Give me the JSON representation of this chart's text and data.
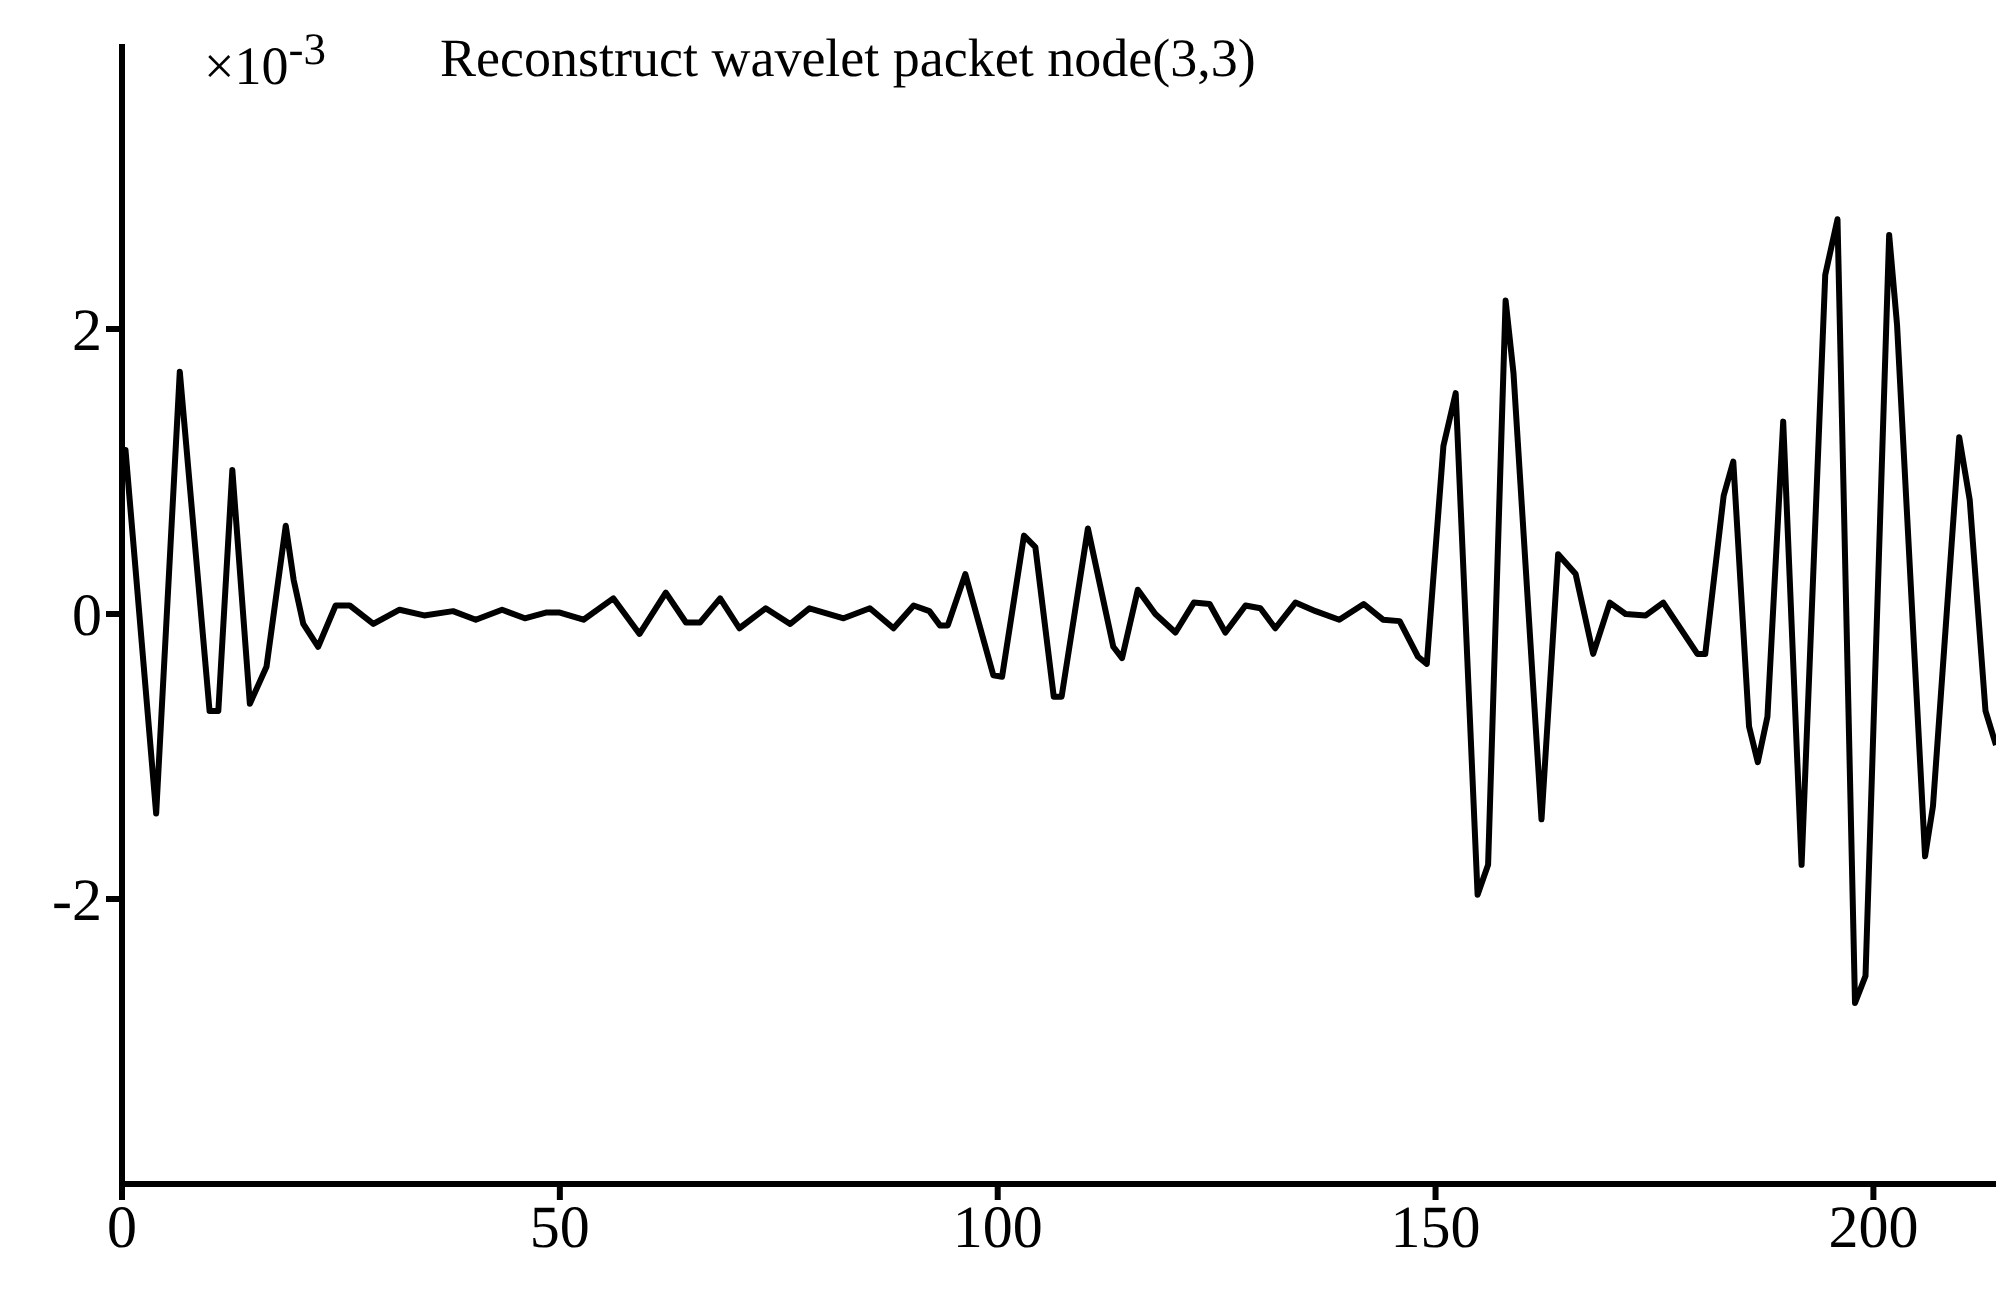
{
  "chart_data": {
    "type": "line",
    "title": "Reconstruct wavelet packet node(3,3)",
    "annotations": [
      "×10$^{-3}$"
    ],
    "x": [
      0,
      0.4,
      3.9,
      6.6,
      10,
      11,
      12.6,
      14.6,
      16.5,
      18.7,
      19.6,
      20.7,
      22.4,
      24.4,
      26,
      28.7,
      31.7,
      34.5,
      37.8,
      40.4,
      43.4,
      46,
      48.4,
      50,
      52.7,
      56.1,
      59.1,
      62.1,
      64.4,
      66,
      68.3,
      70.5,
      73.5,
      76.3,
      78.5,
      82.4,
      85.4,
      88.1,
      90.4,
      92.2,
      93.4,
      94.3,
      96.3,
      99.5,
      100.5,
      103,
      104.3,
      106.4,
      107.3,
      110.3,
      113.2,
      114.2,
      116,
      118,
      120.3,
      122.4,
      124.2,
      126,
      128.3,
      130,
      131.7,
      134,
      136.3,
      139,
      141.8,
      144,
      145.9,
      148,
      149,
      150.9,
      152.3,
      154.8,
      156,
      158,
      158.9,
      162.1,
      164,
      166,
      168,
      169.9,
      171.7,
      174,
      176,
      179.9,
      180.8,
      182.9,
      184,
      185.8,
      186.8,
      187.9,
      189.7,
      191.8,
      194.5,
      195.9,
      197.9,
      199.1,
      201.8,
      202.7,
      205.9,
      206.8,
      209.8,
      211,
      212.8,
      214
    ],
    "series": [
      {
        "color": "#000000",
        "values": [
          1.15,
          1.15,
          -1.4,
          1.7,
          -0.68,
          -0.68,
          1.01,
          -0.63,
          -0.37,
          0.62,
          0.24,
          -0.07,
          -0.23,
          0.06,
          0.06,
          -0.07,
          0.03,
          -0.01,
          0.02,
          -0.04,
          0.03,
          -0.03,
          0.01,
          0.01,
          -0.04,
          0.11,
          -0.14,
          0.15,
          -0.06,
          -0.06,
          0.11,
          -0.1,
          0.04,
          -0.07,
          0.04,
          -0.03,
          0.04,
          -0.1,
          0.06,
          0.02,
          -0.08,
          -0.08,
          0.28,
          -0.43,
          -0.44,
          0.55,
          0.47,
          -0.58,
          -0.58,
          0.6,
          -0.23,
          -0.31,
          0.17,
          0,
          -0.13,
          0.08,
          0.07,
          -0.13,
          0.06,
          0.04,
          -0.1,
          0.08,
          0.02,
          -0.04,
          0.07,
          -0.04,
          -0.05,
          -0.3,
          -0.35,
          1.18,
          1.55,
          -1.97,
          -1.76,
          2.2,
          1.69,
          -1.44,
          0.42,
          0.28,
          -0.28,
          0.08,
          0,
          -0.01,
          0.08,
          -0.28,
          -0.28,
          0.83,
          1.07,
          -0.79,
          -1.04,
          -0.72,
          1.35,
          -1.76,
          2.38,
          2.77,
          -2.73,
          -2.54,
          2.66,
          2.03,
          -1.7,
          -1.35,
          1.24,
          0.8,
          -0.68,
          -0.92
        ]
      }
    ],
    "xlim": [
      0,
      214
    ],
    "xticks": [
      0,
      50,
      100,
      150,
      200
    ],
    "ylim": [
      -4,
      4
    ],
    "yticks": [
      -2,
      0,
      2
    ],
    "grid": false,
    "legend": false,
    "marker": "none",
    "line_style": "solid"
  }
}
